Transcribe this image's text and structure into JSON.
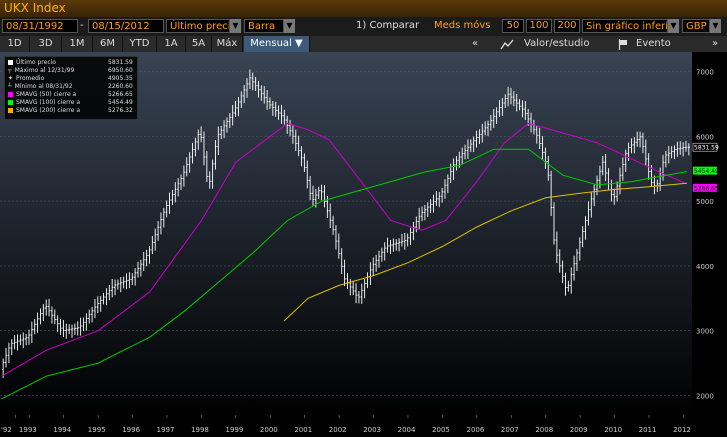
{
  "window": {
    "title": "UKX Index"
  },
  "controls": {
    "start_date": "08/31/1992",
    "end_date": "08/15/2012",
    "field": "Último preci",
    "chart_style": "Barra",
    "compare": "1) Comparar",
    "mavg_label": "Meds móvs",
    "mavg_1": "50",
    "mavg_2": "100",
    "mavg_3": "200",
    "lower_chart": "Sin gráfico inferi",
    "currency": "GBP"
  },
  "periods": [
    "1D",
    "3D",
    "1M",
    "6M",
    "YTD",
    "1A",
    "5A",
    "Máx"
  ],
  "frequency": "Mensual ▼",
  "toolbar": {
    "collapse": "«",
    "study": "Valor/estudio",
    "event": "Evento",
    "more": "»"
  },
  "legend": [
    {
      "label": "Último precio",
      "value": "5831.59",
      "color": "#ffffff"
    },
    {
      "label": "Máximo al 12/31/99",
      "value": "6950.60",
      "color": "#ffffff"
    },
    {
      "label": "Promedio",
      "value": "4905.35",
      "color": "#ffffff"
    },
    {
      "label": "Mínimo al 08/31/92",
      "value": "2260.60",
      "color": "#ffffff"
    },
    {
      "label": "SMAVG (50) cierre a",
      "value": "5266.65",
      "color": "#ff00ff"
    },
    {
      "label": "SMAVG (100) cierre a",
      "value": "5454.49",
      "color": "#00ff00"
    },
    {
      "label": "SMAVG (200) cierre a",
      "value": "5276.32",
      "color": "#ffaa00"
    }
  ],
  "chart_data": {
    "type": "line",
    "x_labels": [
      "'92",
      "1993",
      "1994",
      "1995",
      "1996",
      "1997",
      "1998",
      "1999",
      "2000",
      "2001",
      "2002",
      "2003",
      "2004",
      "2005",
      "2006",
      "2007",
      "2008",
      "2009",
      "2010",
      "2011",
      "2012"
    ],
    "y_ticks": [
      2000,
      3000,
      4000,
      5000,
      6000,
      7000
    ],
    "ylim": [
      1700,
      7300
    ],
    "xlim": [
      1992.65,
      2012.75
    ],
    "grid": true,
    "last_labels": [
      {
        "text": "5831.59",
        "value": 5831.59,
        "color": "#ffffff"
      },
      {
        "text": "5454.49",
        "value": 5454.49,
        "color": "#00ff00"
      },
      {
        "text": "5266.65",
        "value": 5266.65,
        "color": "#ff00ff"
      }
    ],
    "price": [
      [
        1992.7,
        2400
      ],
      [
        1993.0,
        2800
      ],
      [
        1993.5,
        2900
      ],
      [
        1994.0,
        3400
      ],
      [
        1994.5,
        3000
      ],
      [
        1995.0,
        3050
      ],
      [
        1995.5,
        3400
      ],
      [
        1996.0,
        3700
      ],
      [
        1996.5,
        3800
      ],
      [
        1997.0,
        4200
      ],
      [
        1997.5,
        4900
      ],
      [
        1998.0,
        5400
      ],
      [
        1998.5,
        6100
      ],
      [
        1998.75,
        5200
      ],
      [
        1999.0,
        6000
      ],
      [
        1999.5,
        6400
      ],
      [
        1999.95,
        6900
      ],
      [
        2000.5,
        6500
      ],
      [
        2000.9,
        6300
      ],
      [
        2001.2,
        6000
      ],
      [
        2001.5,
        5600
      ],
      [
        2001.75,
        5000
      ],
      [
        2002.0,
        5200
      ],
      [
        2002.4,
        4500
      ],
      [
        2002.7,
        3800
      ],
      [
        2003.1,
        3500
      ],
      [
        2003.5,
        4000
      ],
      [
        2003.9,
        4300
      ],
      [
        2004.5,
        4400
      ],
      [
        2004.9,
        4800
      ],
      [
        2005.5,
        5100
      ],
      [
        2005.9,
        5600
      ],
      [
        2006.4,
        5900
      ],
      [
        2006.9,
        6200
      ],
      [
        2007.45,
        6650
      ],
      [
        2007.9,
        6400
      ],
      [
        2008.3,
        6000
      ],
      [
        2008.6,
        5500
      ],
      [
        2008.8,
        4300
      ],
      [
        2009.15,
        3600
      ],
      [
        2009.5,
        4300
      ],
      [
        2009.9,
        5100
      ],
      [
        2010.2,
        5600
      ],
      [
        2010.5,
        5000
      ],
      [
        2010.9,
        5800
      ],
      [
        2011.3,
        6000
      ],
      [
        2011.6,
        5300
      ],
      [
        2011.75,
        5200
      ],
      [
        2012.0,
        5700
      ],
      [
        2012.3,
        5800
      ],
      [
        2012.6,
        5831.59
      ]
    ],
    "series": [
      {
        "name": "SMAVG (50) cierre a",
        "color": "#cc00cc",
        "points": [
          [
            1992.7,
            2300
          ],
          [
            1994.0,
            2700
          ],
          [
            1995.5,
            3000
          ],
          [
            1997.0,
            3600
          ],
          [
            1998.5,
            4700
          ],
          [
            1999.5,
            5600
          ],
          [
            2000.5,
            6000
          ],
          [
            2001.0,
            6200
          ],
          [
            2001.6,
            6100
          ],
          [
            2002.2,
            5950
          ],
          [
            2003.0,
            5400
          ],
          [
            2004.0,
            4700
          ],
          [
            2004.9,
            4550
          ],
          [
            2005.6,
            4700
          ],
          [
            2006.5,
            5300
          ],
          [
            2007.3,
            5900
          ],
          [
            2008.0,
            6200
          ],
          [
            2009.0,
            6050
          ],
          [
            2010.0,
            5900
          ],
          [
            2011.0,
            5650
          ],
          [
            2011.8,
            5450
          ],
          [
            2012.6,
            5266.65
          ]
        ]
      },
      {
        "name": "SMAVG (100) cierre a",
        "color": "#00cc00",
        "points": [
          [
            1992.7,
            1950
          ],
          [
            1994.0,
            2300
          ],
          [
            1995.5,
            2500
          ],
          [
            1997.0,
            2900
          ],
          [
            1998.0,
            3300
          ],
          [
            1999.0,
            3750
          ],
          [
            2000.0,
            4200
          ],
          [
            2001.0,
            4700
          ],
          [
            2002.0,
            5000
          ],
          [
            2003.0,
            5150
          ],
          [
            2004.0,
            5300
          ],
          [
            2005.0,
            5450
          ],
          [
            2006.0,
            5550
          ],
          [
            2007.0,
            5800
          ],
          [
            2008.0,
            5800
          ],
          [
            2009.0,
            5400
          ],
          [
            2010.0,
            5250
          ],
          [
            2011.0,
            5300
          ],
          [
            2011.5,
            5350
          ],
          [
            2012.6,
            5454.49
          ]
        ]
      },
      {
        "name": "SMAVG (200) cierre a",
        "color": "#e0c000",
        "points": [
          [
            2000.9,
            3150
          ],
          [
            2001.6,
            3500
          ],
          [
            2002.5,
            3700
          ],
          [
            2003.5,
            3850
          ],
          [
            2004.5,
            4050
          ],
          [
            2005.5,
            4300
          ],
          [
            2006.5,
            4600
          ],
          [
            2007.5,
            4850
          ],
          [
            2008.5,
            5050
          ],
          [
            2009.5,
            5120
          ],
          [
            2010.5,
            5180
          ],
          [
            2011.5,
            5220
          ],
          [
            2012.6,
            5276.32
          ]
        ]
      }
    ]
  }
}
